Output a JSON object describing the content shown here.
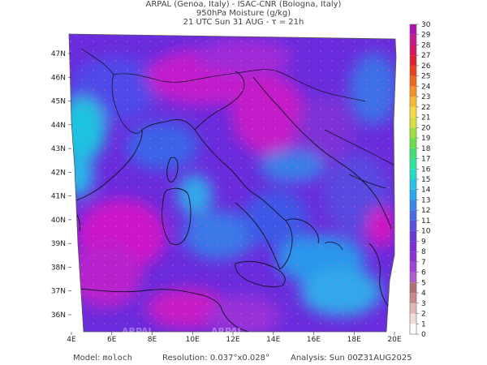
{
  "header": {
    "line1": "ARPAL (Genoa, Italy)  -  ISAC-CNR (Bologna, Italy)",
    "line2": "950hPa Moisture (g/kg)",
    "line3": "21 UTC Sun 31 AUG  -  τ = 21h"
  },
  "map": {
    "lon_ticks": [
      "4E",
      "6E",
      "8E",
      "10E",
      "12E",
      "14E",
      "16E",
      "18E",
      "20E"
    ],
    "lat_ticks": [
      "47N",
      "46N",
      "45N",
      "44N",
      "43N",
      "42N",
      "41N",
      "40N",
      "39N",
      "38N",
      "37N",
      "36N"
    ],
    "watermark": "ARPAL"
  },
  "colorbar": {
    "levels": [
      0,
      1,
      2,
      3,
      4,
      5,
      6,
      7,
      8,
      9,
      10,
      11,
      12,
      13,
      14,
      15,
      16,
      17,
      18,
      19,
      20,
      21,
      22,
      23,
      24,
      25,
      26,
      27,
      28,
      29,
      30
    ],
    "colors": [
      "#ffffff",
      "#f4dcdc",
      "#e3b6b6",
      "#c88888",
      "#b07070",
      "#b05ad0",
      "#a040d8",
      "#8a30d6",
      "#7a30d6",
      "#6838d8",
      "#5850e0",
      "#4868e8",
      "#3888ec",
      "#2ca6ee",
      "#24c4e8",
      "#24dcc8",
      "#2ce4a0",
      "#40e070",
      "#6ae048",
      "#a0e040",
      "#d8e040",
      "#f4dc40",
      "#f8b830",
      "#f89028",
      "#f06820",
      "#e84020",
      "#e02030",
      "#d81860",
      "#c81890",
      "#b010b0"
    ]
  },
  "footer": {
    "model_label": "Model:",
    "model_value": "moloch",
    "resolution_label": "Resolution:",
    "resolution_value": "0.037°x0.028°",
    "analysis_label": "Analysis:",
    "analysis_value": "Sun 00Z31AUG2025"
  }
}
